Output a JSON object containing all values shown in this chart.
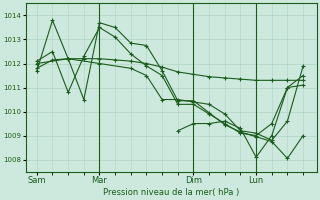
{
  "background_color": "#cde8dd",
  "grid_color": "#b0d4c4",
  "line_color": "#1a5c1a",
  "xlabel": "Pression niveau de la mer( hPa )",
  "ylim": [
    1007.5,
    1014.5
  ],
  "yticks": [
    1008,
    1009,
    1010,
    1011,
    1012,
    1013,
    1014
  ],
  "day_labels": [
    "Sam",
    "Mar",
    "Dim",
    "Lun"
  ],
  "day_positions": [
    0,
    28,
    70,
    98
  ],
  "xlim": [
    -5,
    125
  ],
  "vline_positions": [
    28,
    70,
    98
  ],
  "marker": "+",
  "markersize": 3.5,
  "linewidth": 0.8,
  "series1": {
    "x": [
      0,
      7,
      14,
      21,
      28,
      35,
      42,
      49,
      56,
      63,
      70,
      77,
      84,
      91,
      98,
      105,
      112,
      119
    ],
    "y": [
      1011.7,
      1013.8,
      1012.2,
      1010.5,
      1013.7,
      1013.5,
      1012.85,
      1012.75,
      1011.7,
      1010.45,
      1010.45,
      1009.95,
      1009.45,
      1009.15,
      1008.95,
      1008.75,
      1008.05,
      1009.0
    ]
  },
  "series2": {
    "x": [
      0,
      7,
      14,
      21,
      28,
      35,
      42,
      49,
      56,
      63,
      70,
      77,
      84,
      91,
      98,
      105,
      112,
      119
    ],
    "y": [
      1012.1,
      1012.5,
      1010.8,
      1012.3,
      1013.5,
      1013.1,
      1012.4,
      1011.9,
      1011.5,
      1010.3,
      1010.3,
      1009.9,
      1009.5,
      1009.1,
      1009.0,
      1009.5,
      1011.0,
      1011.1
    ]
  },
  "series3": {
    "x": [
      0,
      7,
      14,
      21,
      28,
      35,
      42,
      49,
      56,
      63,
      70,
      77,
      84,
      91,
      98,
      105,
      112,
      119
    ],
    "y": [
      1011.8,
      1012.15,
      1012.2,
      1012.2,
      1012.2,
      1012.15,
      1012.1,
      1012.0,
      1011.85,
      1011.65,
      1011.55,
      1011.45,
      1011.4,
      1011.35,
      1011.3,
      1011.3,
      1011.3,
      1011.3
    ]
  },
  "series4": {
    "x": [
      0,
      14,
      28,
      42,
      49,
      56,
      63,
      70,
      77,
      84,
      91,
      98,
      105,
      112,
      119
    ],
    "y": [
      1012.0,
      1012.2,
      1012.0,
      1011.8,
      1011.5,
      1010.5,
      1010.5,
      1010.4,
      1010.3,
      1009.9,
      1009.2,
      1009.1,
      1008.8,
      1009.6,
      1011.9
    ]
  },
  "series5": {
    "x": [
      63,
      70,
      77,
      84,
      91,
      98,
      105,
      112,
      119
    ],
    "y": [
      1009.2,
      1009.5,
      1009.5,
      1009.6,
      1009.3,
      1008.1,
      1009.0,
      1011.0,
      1011.5
    ]
  }
}
